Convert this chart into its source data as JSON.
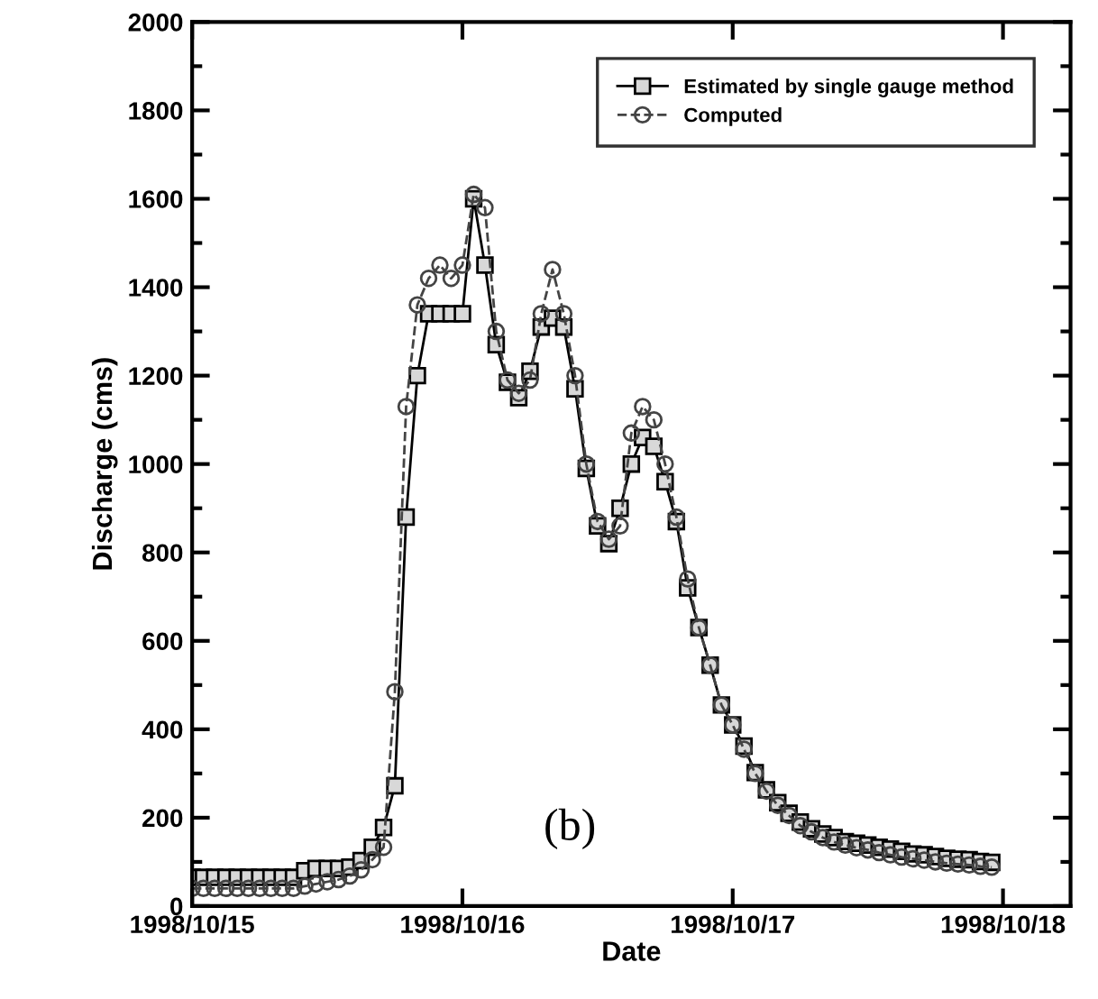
{
  "chart_data": {
    "type": "line",
    "xlabel": "Date",
    "ylabel": "Discharge (cms)",
    "annotations": [
      "(b)"
    ],
    "x": [
      "1998-10-15T00:00",
      "1998-10-15T01:00",
      "1998-10-15T02:00",
      "1998-10-15T03:00",
      "1998-10-15T04:00",
      "1998-10-15T05:00",
      "1998-10-15T06:00",
      "1998-10-15T07:00",
      "1998-10-15T08:00",
      "1998-10-15T09:00",
      "1998-10-15T10:00",
      "1998-10-15T11:00",
      "1998-10-15T12:00",
      "1998-10-15T13:00",
      "1998-10-15T14:00",
      "1998-10-15T15:00",
      "1998-10-15T16:00",
      "1998-10-15T17:00",
      "1998-10-15T18:00",
      "1998-10-15T19:00",
      "1998-10-15T20:00",
      "1998-10-15T21:00",
      "1998-10-15T22:00",
      "1998-10-15T23:00",
      "1998-10-16T00:00",
      "1998-10-16T01:00",
      "1998-10-16T02:00",
      "1998-10-16T03:00",
      "1998-10-16T04:00",
      "1998-10-16T05:00",
      "1998-10-16T06:00",
      "1998-10-16T07:00",
      "1998-10-16T08:00",
      "1998-10-16T09:00",
      "1998-10-16T10:00",
      "1998-10-16T11:00",
      "1998-10-16T12:00",
      "1998-10-16T13:00",
      "1998-10-16T14:00",
      "1998-10-16T15:00",
      "1998-10-16T16:00",
      "1998-10-16T17:00",
      "1998-10-16T18:00",
      "1998-10-16T19:00",
      "1998-10-16T20:00",
      "1998-10-16T21:00",
      "1998-10-16T22:00",
      "1998-10-16T23:00",
      "1998-10-17T00:00",
      "1998-10-17T01:00",
      "1998-10-17T02:00",
      "1998-10-17T03:00",
      "1998-10-17T04:00",
      "1998-10-17T05:00",
      "1998-10-17T06:00",
      "1998-10-17T07:00",
      "1998-10-17T08:00",
      "1998-10-17T09:00",
      "1998-10-17T10:00",
      "1998-10-17T11:00",
      "1998-10-17T12:00",
      "1998-10-17T13:00",
      "1998-10-17T14:00",
      "1998-10-17T15:00",
      "1998-10-17T16:00",
      "1998-10-17T17:00",
      "1998-10-17T18:00",
      "1998-10-17T19:00",
      "1998-10-17T20:00",
      "1998-10-17T21:00",
      "1998-10-17T22:00",
      "1998-10-17T23:00"
    ],
    "series": [
      {
        "name": "Estimated by single gauge method",
        "color": "#000000",
        "marker": "square",
        "line_style": "solid",
        "values": [
          65,
          65,
          65,
          65,
          65,
          65,
          65,
          65,
          65,
          65,
          80,
          85,
          85,
          85,
          88,
          103,
          133,
          178,
          272,
          880,
          1200,
          1340,
          1340,
          1340,
          1340,
          1600,
          1450,
          1270,
          1185,
          1150,
          1210,
          1310,
          1330,
          1310,
          1170,
          990,
          860,
          820,
          900,
          1000,
          1060,
          1040,
          960,
          870,
          720,
          630,
          545,
          455,
          410,
          362,
          302,
          263,
          234,
          210,
          190,
          175,
          163,
          155,
          146,
          142,
          138,
          133,
          129,
          124,
          118,
          116,
          112,
          108,
          106,
          105,
          101,
          99
        ]
      },
      {
        "name": "Computed",
        "color": "#444444",
        "marker": "circle",
        "line_style": "dashed",
        "values": [
          40,
          40,
          40,
          40,
          40,
          40,
          40,
          40,
          40,
          40,
          45,
          50,
          55,
          60,
          68,
          82,
          105,
          133,
          485,
          1130,
          1360,
          1420,
          1450,
          1420,
          1450,
          1610,
          1580,
          1300,
          1190,
          1160,
          1190,
          1340,
          1440,
          1340,
          1200,
          1000,
          870,
          830,
          860,
          1070,
          1130,
          1100,
          1000,
          880,
          740,
          630,
          545,
          455,
          410,
          355,
          300,
          260,
          228,
          205,
          182,
          168,
          155,
          145,
          138,
          132,
          127,
          121,
          116,
          111,
          107,
          104,
          100,
          97,
          95,
          93,
          90,
          88
        ]
      }
    ],
    "xlim": [
      "1998-10-15T00:00",
      "1998-10-18T06:00"
    ],
    "xticks": [
      {
        "value": "1998-10-15",
        "label": "1998/10/15"
      },
      {
        "value": "1998-10-16",
        "label": "1998/10/16"
      },
      {
        "value": "1998-10-17",
        "label": "1998/10/17"
      },
      {
        "value": "1998-10-18",
        "label": "1998/10/18"
      }
    ],
    "ylim": [
      0,
      2000
    ],
    "yticks": [
      0,
      200,
      400,
      600,
      800,
      1000,
      1200,
      1400,
      1600,
      1800,
      2000
    ],
    "grid": false,
    "legend": "top right"
  }
}
